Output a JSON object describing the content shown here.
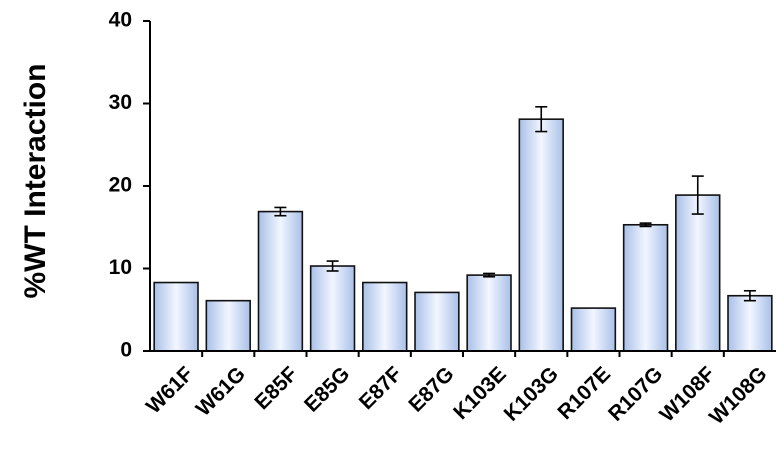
{
  "chart_data": {
    "type": "bar",
    "title": "",
    "xlabel": "",
    "ylabel": "%WT Interaction",
    "ylim": [
      0,
      40
    ],
    "yticks": [
      0,
      10,
      20,
      30,
      40
    ],
    "grid": false,
    "legend": "none",
    "categories": [
      "W61F",
      "W61G",
      "E85F",
      "E85G",
      "E87F",
      "E87G",
      "K103E",
      "K103G",
      "R107E",
      "R107G",
      "W108F",
      "W108G"
    ],
    "values": [
      8.3,
      6.1,
      16.9,
      10.3,
      8.3,
      7.1,
      9.2,
      28.1,
      5.2,
      15.3,
      18.9,
      6.7
    ],
    "errors": [
      0,
      0,
      0.5,
      0.6,
      0,
      0,
      0.2,
      1.5,
      0,
      0.2,
      2.3,
      0.6
    ],
    "colors": {
      "bar_light": "#f2f6ff",
      "bar_dark": "#a9c0e8",
      "bar_edge": "#111111",
      "axis": "#000000"
    }
  }
}
